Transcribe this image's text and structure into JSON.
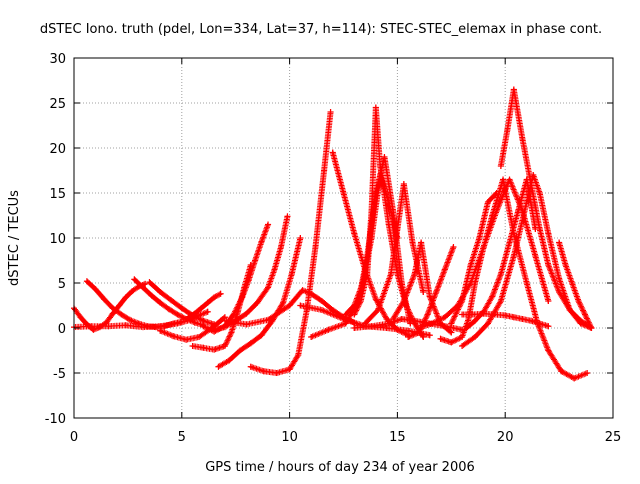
{
  "chart_data": {
    "type": "scatter",
    "title": "dSTEC Iono. truth (pdel, Lon=334, Lat=37, h=114): STEC-STEC_elemax in phase cont.",
    "xlabel": "GPS time / hours of day 234 of year 2006",
    "ylabel": "dSTEC  / TECUs",
    "xlim": [
      0,
      25
    ],
    "ylim": [
      -10,
      30
    ],
    "x_ticks": [
      0,
      5,
      10,
      15,
      20,
      25
    ],
    "y_ticks": [
      -10,
      -5,
      0,
      5,
      10,
      15,
      20,
      25,
      30
    ],
    "x_tick_labels": [
      "0",
      "5",
      "10",
      "15",
      "20",
      "25"
    ],
    "y_tick_labels": [
      "-10",
      "-5",
      "0",
      "5",
      "10",
      "15",
      "20",
      "25",
      "30"
    ],
    "grid": true,
    "marker": "plus",
    "colors": {
      "series": "#ff0000",
      "grid": "#a0a0a0",
      "axis": "#000000"
    },
    "series": [
      {
        "x": [
          0.0,
          0.3,
          0.6,
          0.9,
          1.2,
          1.5,
          1.8,
          2.1,
          2.4,
          2.7,
          3.0,
          3.3
        ],
        "y": [
          2.2,
          1.2,
          0.4,
          -0.2,
          0.1,
          0.6,
          1.6,
          2.5,
          3.4,
          4.1,
          4.6,
          4.9
        ]
      },
      {
        "x": [
          0.6,
          1.0,
          1.4,
          1.8,
          2.2,
          2.6,
          3.0,
          3.4,
          3.8,
          4.2,
          4.6,
          5.0
        ],
        "y": [
          5.2,
          4.3,
          3.2,
          2.2,
          1.5,
          0.9,
          0.5,
          0.2,
          0.1,
          0.2,
          0.5,
          0.7
        ]
      },
      {
        "x": [
          0.0,
          0.8,
          1.6,
          2.4,
          3.2,
          4.0,
          4.8,
          5.4,
          5.8,
          6.2
        ],
        "y": [
          0.1,
          0.2,
          0.2,
          0.3,
          0.1,
          0.2,
          0.5,
          0.9,
          1.4,
          1.8
        ]
      },
      {
        "x": [
          2.8,
          3.2,
          3.6,
          4.0,
          4.4,
          4.8,
          5.2,
          5.6,
          6.0
        ],
        "y": [
          5.4,
          4.5,
          3.6,
          2.8,
          2.1,
          1.5,
          1.0,
          0.6,
          0.3
        ]
      },
      {
        "x": [
          3.5,
          4.0,
          4.5,
          5.0,
          5.5,
          6.0,
          6.5
        ],
        "y": [
          5.1,
          4.0,
          3.1,
          2.2,
          1.4,
          0.8,
          0.4
        ]
      },
      {
        "x": [
          4.0,
          4.6,
          5.2,
          5.8,
          6.4,
          6.8,
          7.0
        ],
        "y": [
          -0.3,
          -0.9,
          -1.3,
          -1.0,
          0.0,
          0.8,
          1.2
        ]
      },
      {
        "x": [
          5.3,
          5.6,
          5.9,
          6.2,
          6.5,
          6.8
        ],
        "y": [
          1.2,
          1.6,
          2.2,
          2.8,
          3.4,
          3.8
        ]
      },
      {
        "x": [
          5.5,
          6.0,
          6.5,
          7.0,
          7.3,
          7.6,
          7.9,
          8.2
        ],
        "y": [
          -2.0,
          -2.2,
          -2.4,
          -2.0,
          -0.5,
          1.8,
          4.5,
          7.0
        ]
      },
      {
        "x": [
          6.0,
          6.5,
          7.0,
          7.4,
          7.8,
          8.1,
          8.4,
          8.7,
          9.0
        ],
        "y": [
          0.2,
          -0.4,
          0.2,
          1.5,
          3.4,
          5.3,
          7.5,
          9.6,
          11.5
        ]
      },
      {
        "x": [
          6.5,
          7.0,
          7.5,
          8.0,
          8.5,
          9.0,
          9.3,
          9.6,
          9.9
        ],
        "y": [
          -0.2,
          0.1,
          0.8,
          1.6,
          2.8,
          4.5,
          6.5,
          9.0,
          12.4
        ]
      },
      {
        "x": [
          6.7,
          7.2,
          7.7,
          8.2,
          8.7,
          9.2,
          9.7,
          10.1,
          10.5
        ],
        "y": [
          -4.3,
          -3.6,
          -2.5,
          -1.7,
          -0.8,
          0.8,
          2.8,
          6.0,
          10.0
        ]
      },
      {
        "x": [
          8.2,
          8.8,
          9.4,
          10.0,
          10.4,
          10.8,
          11.2,
          11.6,
          11.9
        ],
        "y": [
          -4.3,
          -4.8,
          -5.0,
          -4.6,
          -3.0,
          2.0,
          9.0,
          17.5,
          24.0
        ]
      },
      {
        "x": [
          7.0,
          8.0,
          9.0,
          10.0,
          10.6,
          11.0,
          11.5,
          12.0,
          12.5,
          13.0
        ],
        "y": [
          0.8,
          0.4,
          0.9,
          2.5,
          4.2,
          3.8,
          3.0,
          2.0,
          1.2,
          0.6
        ]
      },
      {
        "x": [
          11.0,
          11.8,
          12.6,
          13.2,
          13.6,
          14.0,
          14.4,
          14.8,
          15.2,
          15.6
        ],
        "y": [
          -1.0,
          -0.2,
          0.5,
          3.0,
          8.0,
          15.0,
          19.0,
          13.0,
          5.0,
          0.5
        ]
      },
      {
        "x": [
          10.5,
          11.5,
          12.5,
          13.5,
          14.5,
          15.5,
          16.5
        ],
        "y": [
          2.5,
          2.0,
          1.0,
          0.2,
          0.0,
          -0.3,
          -0.8
        ]
      },
      {
        "x": [
          12.0,
          12.5,
          13.0,
          13.5,
          14.0,
          14.5,
          15.0,
          15.5
        ],
        "y": [
          19.5,
          15.0,
          10.5,
          6.5,
          3.2,
          1.0,
          -0.2,
          -0.8
        ]
      },
      {
        "x": [
          12.6,
          13.0,
          13.4,
          13.8,
          14.2,
          14.6,
          15.0
        ],
        "y": [
          1.5,
          2.5,
          5.0,
          10.0,
          17.0,
          14.0,
          10.0
        ]
      },
      {
        "x": [
          13.0,
          13.3,
          13.6,
          13.8,
          14.0,
          14.2,
          14.6,
          15.0,
          15.4,
          15.8,
          16.2
        ],
        "y": [
          1.5,
          3.0,
          6.0,
          13.0,
          24.5,
          18.0,
          11.5,
          6.0,
          2.5,
          0.5,
          -1.0
        ]
      },
      {
        "x": [
          13.0,
          13.8,
          14.6,
          15.2,
          15.8,
          16.5,
          17.2,
          18.0
        ],
        "y": [
          0.0,
          0.2,
          0.5,
          1.0,
          0.8,
          0.5,
          0.2,
          -0.2
        ]
      },
      {
        "x": [
          13.5,
          14.1,
          14.7,
          15.0,
          15.3,
          15.7,
          16.2
        ],
        "y": [
          0.5,
          2.0,
          6.0,
          11.0,
          16.0,
          9.5,
          4.0
        ]
      },
      {
        "x": [
          14.8,
          15.3,
          15.8,
          16.1,
          16.5,
          17.0,
          17.5
        ],
        "y": [
          1.0,
          3.0,
          6.0,
          9.5,
          3.5,
          0.5,
          -0.5
        ]
      },
      {
        "x": [
          15.5,
          16.0,
          16.4,
          16.8,
          17.2,
          17.6
        ],
        "y": [
          -1.0,
          -0.5,
          1.5,
          4.0,
          6.5,
          9.0
        ]
      },
      {
        "x": [
          16.0,
          16.6,
          17.2,
          17.8,
          18.4,
          19.0,
          19.6,
          20.2,
          20.8,
          21.4,
          22.0
        ],
        "y": [
          0.0,
          0.5,
          1.2,
          2.5,
          5.0,
          9.0,
          13.0,
          16.5,
          13.0,
          8.0,
          3.0
        ]
      },
      {
        "x": [
          17.0,
          17.5,
          18.0,
          18.3,
          18.6,
          19.0,
          19.4,
          19.9,
          20.4,
          21.0,
          21.5,
          22.0,
          22.6,
          23.2,
          23.8
        ],
        "y": [
          -1.2,
          -1.6,
          -1.0,
          1.0,
          5.0,
          9.0,
          12.5,
          16.5,
          10.5,
          5.0,
          0.5,
          -2.5,
          -4.8,
          -5.6,
          -5.0
        ]
      },
      {
        "x": [
          17.5,
          18.0,
          18.4,
          18.8,
          19.2,
          19.6
        ],
        "y": [
          0.5,
          3.0,
          7.0,
          10.0,
          14.0,
          15.0
        ]
      },
      {
        "x": [
          18.0,
          18.6,
          19.2,
          19.8,
          20.4,
          21.0,
          21.3,
          21.6,
          22.0,
          22.5,
          23.0,
          23.5,
          24.0
        ],
        "y": [
          -2.0,
          -1.0,
          0.5,
          3.0,
          8.0,
          14.0,
          17.0,
          15.0,
          10.5,
          5.5,
          2.0,
          0.5,
          0.0
        ]
      },
      {
        "x": [
          18.2,
          18.6,
          19.0,
          19.4,
          19.8,
          20.2,
          20.6,
          21.0,
          21.4
        ],
        "y": [
          0.0,
          0.8,
          1.8,
          3.5,
          6.0,
          9.5,
          13.0,
          16.5,
          11.0
        ]
      },
      {
        "x": [
          18.0,
          18.5,
          19.0,
          19.5,
          20.0,
          20.4,
          20.8,
          21.2,
          21.6,
          22.0
        ],
        "y": [
          1.5,
          1.5,
          1.6,
          1.5,
          1.4,
          1.2,
          1.0,
          0.8,
          0.5,
          0.2
        ]
      },
      {
        "x": [
          19.8,
          20.1,
          20.4,
          20.8,
          21.2,
          21.6,
          22.0,
          22.5,
          23.0,
          23.5,
          24.0
        ],
        "y": [
          18.0,
          22.0,
          26.5,
          21.0,
          16.0,
          11.0,
          7.0,
          4.0,
          2.0,
          0.8,
          0.0
        ]
      },
      {
        "x": [
          22.5,
          22.8,
          23.1,
          23.4,
          23.7,
          24.0
        ],
        "y": [
          9.5,
          7.0,
          5.0,
          3.0,
          1.5,
          0.0
        ]
      }
    ]
  }
}
